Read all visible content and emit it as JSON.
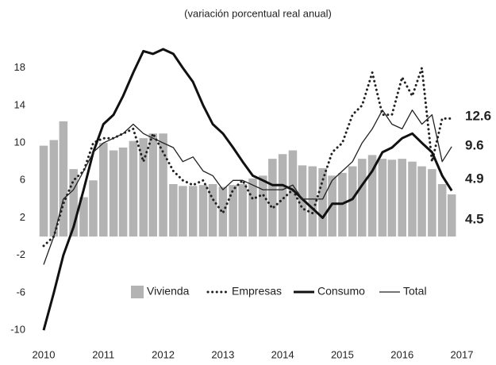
{
  "chart_data": {
    "type": "bar-line",
    "title": "(variación porcentual real anual)",
    "x": [
      2010,
      2010.17,
      2010.33,
      2010.5,
      2010.67,
      2010.83,
      2011,
      2011.17,
      2011.33,
      2011.5,
      2011.67,
      2011.83,
      2012,
      2012.17,
      2012.33,
      2012.5,
      2012.67,
      2012.83,
      2013,
      2013.17,
      2013.33,
      2013.5,
      2013.67,
      2013.83,
      2014,
      2014.17,
      2014.33,
      2014.5,
      2014.67,
      2014.83,
      2015,
      2015.17,
      2015.33,
      2015.5,
      2015.67,
      2015.83,
      2016,
      2016.17,
      2016.33,
      2016.5,
      2016.67,
      2016.83
    ],
    "series": [
      {
        "name": "Vivienda",
        "type": "bar",
        "color": "#b3b3b3",
        "values": [
          9.7,
          10.3,
          12.3,
          7.2,
          4.2,
          6,
          10,
          9.2,
          9.5,
          10.2,
          10.5,
          11,
          11,
          5.6,
          5.4,
          5.4,
          5.5,
          5.6,
          5.3,
          5.5,
          5.6,
          6.2,
          6.5,
          8.3,
          8.8,
          9.2,
          7.6,
          7.5,
          7.3,
          6.5,
          6.8,
          7.5,
          8.3,
          8.7,
          8.3,
          8.2,
          8.3,
          8,
          7.5,
          7.2,
          5.6,
          4.5
        ]
      },
      {
        "name": "Empresas",
        "type": "line",
        "style": "dotted",
        "width": 3,
        "color": "#222222",
        "values": [
          -1,
          0,
          3.5,
          6,
          7,
          10,
          10.5,
          10.5,
          11,
          11.5,
          8,
          11,
          9,
          7,
          6,
          5.5,
          6,
          4,
          2.5,
          5,
          6,
          4,
          4.5,
          3,
          4,
          5,
          3,
          2.5,
          6,
          9,
          10,
          13,
          14,
          17.5,
          13,
          13,
          17,
          15,
          18,
          8,
          12.6,
          12.6
        ]
      },
      {
        "name": "Consumo",
        "type": "line",
        "style": "solid",
        "width": 3,
        "color": "#111111",
        "values": [
          -10,
          -6,
          -2,
          1,
          5,
          9,
          12,
          13,
          15,
          17.5,
          19.8,
          19.5,
          20,
          19.5,
          18,
          16.5,
          14,
          12,
          11,
          9.5,
          8,
          6.5,
          6,
          5.5,
          5.5,
          5,
          4,
          3,
          2,
          3.5,
          3.5,
          4,
          5.5,
          7,
          9,
          9.5,
          10.5,
          11,
          10,
          9,
          6.5,
          4.9
        ]
      },
      {
        "name": "Total",
        "type": "line",
        "style": "solid",
        "width": 1.3,
        "color": "#222222",
        "values": [
          -3,
          0,
          4,
          5,
          7,
          9,
          10,
          10.5,
          11,
          12,
          11,
          10.5,
          10,
          9.5,
          8,
          8.5,
          7,
          6.5,
          5,
          6,
          6,
          5.5,
          5,
          5,
          5,
          5.5,
          4,
          4,
          4,
          6,
          7,
          8,
          10,
          11.5,
          13.5,
          12,
          11.5,
          13.5,
          12,
          13,
          8,
          9.6
        ]
      }
    ],
    "label_last": true,
    "xlim": [
      2010,
      2017
    ],
    "xticks": [
      2010,
      2011,
      2012,
      2013,
      2014,
      2015,
      2016,
      2017
    ],
    "ylim": [
      -11,
      20
    ],
    "yticks": [
      18,
      14,
      10,
      6,
      2,
      -2,
      -6,
      -10
    ],
    "grid": false,
    "legend": "lower center"
  }
}
